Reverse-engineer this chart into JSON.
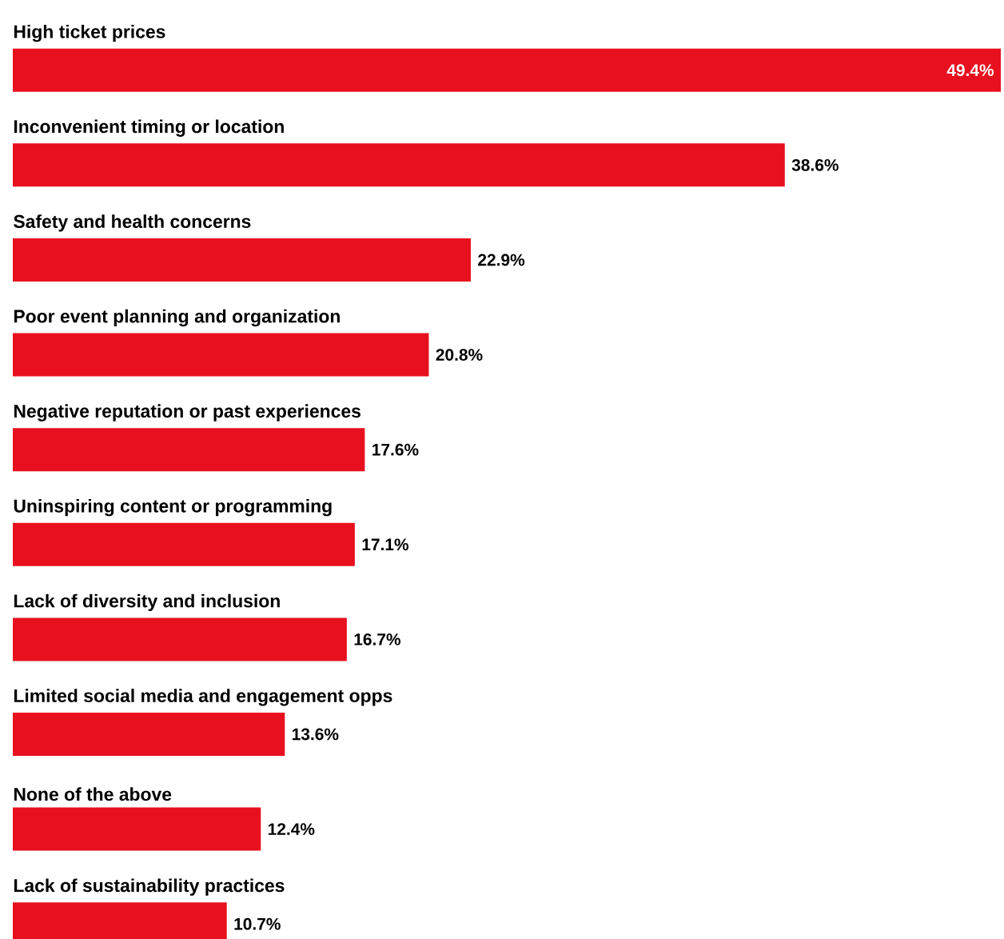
{
  "chart_data": {
    "type": "bar",
    "orientation": "horizontal",
    "categories": [
      "High ticket prices",
      "Inconvenient timing or location",
      "Safety and health concerns",
      "Poor event planning and organization",
      "Negative reputation or past experiences",
      "Uninspiring content or programming",
      "Lack of diversity and inclusion",
      "Limited social media and engagement opps",
      "None of the above",
      "Lack of sustainability practices"
    ],
    "values": [
      49.4,
      38.6,
      22.9,
      20.8,
      17.6,
      17.1,
      16.7,
      13.6,
      12.4,
      10.7
    ],
    "value_labels": [
      "49.4%",
      "38.6%",
      "22.9%",
      "20.8%",
      "17.6%",
      "17.1%",
      "16.7%",
      "13.6%",
      "12.4%",
      "10.7%"
    ],
    "color": "#e8101e"
  }
}
